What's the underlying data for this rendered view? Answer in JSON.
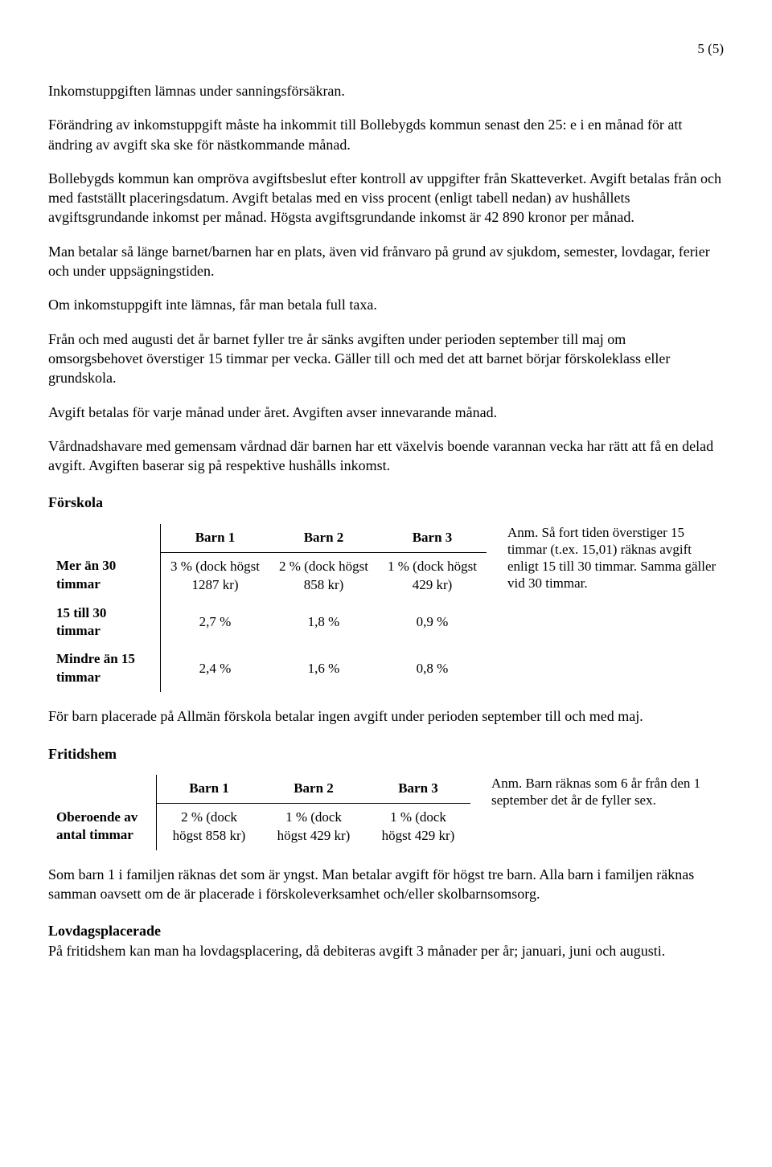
{
  "pageNumber": "5 (5)",
  "paragraphs": {
    "p1": "Inkomstuppgiften lämnas under sanningsförsäkran.",
    "p2": "Förändring av inkomstuppgift måste ha inkommit till Bollebygds kommun senast den 25: e i en månad för att ändring av avgift ska ske för nästkommande månad.",
    "p3": "Bollebygds kommun kan ompröva avgiftsbeslut efter kontroll av uppgifter från Skatteverket. Avgift betalas från och med fastställt placeringsdatum. Avgift betalas med en viss procent (enligt tabell nedan) av hushållets avgiftsgrundande inkomst per månad. Högsta avgiftsgrundande inkomst är 42 890 kronor per månad.",
    "p4": "Man betalar så länge barnet/barnen har en plats, även vid frånvaro på grund av sjukdom, semester, lovdagar, ferier och under uppsägningstiden.",
    "p5": "Om inkomstuppgift inte lämnas, får man betala full taxa.",
    "p6": "Från och med augusti det år barnet fyller tre år sänks avgiften under perioden september till maj om omsorgsbehovet överstiger 15 timmar per vecka. Gäller till och med det att barnet börjar förskoleklass eller grundskola.",
    "p7": "Avgift betalas för varje månad under året. Avgiften avser innevarande månad.",
    "p8": "Vårdnadshavare med gemensam vårdnad där barnen har ett växelvis boende varannan vecka har rätt att få en delad avgift. Avgiften baserar sig på respektive hushålls inkomst.",
    "p9": "För barn placerade på Allmän förskola betalar ingen avgift under perioden september till och med maj.",
    "p10": "Som barn 1 i familjen räknas det som är yngst. Man betalar avgift för högst tre barn. Alla barn i familjen räknas samman oavsett om de är placerade i förskoleverksamhet och/eller skolbarnsomsorg.",
    "p11": "På fritidshem kan man ha lovdagsplacering, då debiteras avgift 3 månader per år; januari, juni och augusti."
  },
  "headings": {
    "forskola": "Förskola",
    "fritidshem": "Fritidshem",
    "lovdags": "Lovdagsplacerade"
  },
  "forskolaTable": {
    "headers": {
      "empty": "",
      "b1": "Barn 1",
      "b2": "Barn 2",
      "b3": "Barn 3"
    },
    "rows": {
      "r1": {
        "label": "Mer än 30 timmar",
        "c1": "3 % (dock högst 1287 kr)",
        "c2": "2 % (dock högst 858 kr)",
        "c3": "1 % (dock högst 429 kr)"
      },
      "r2": {
        "label": "15 till 30 timmar",
        "c1": "2,7 %",
        "c2": "1,8 %",
        "c3": "0,9 %"
      },
      "r3": {
        "label": "Mindre än 15 timmar",
        "c1": "2,4 %",
        "c2": "1,6 %",
        "c3": "0,8 %"
      }
    },
    "note": "Anm. Så fort tiden överstiger 15 timmar (t.ex. 15,01) räknas avgift enligt 15 till 30 timmar. Samma gäller vid 30 timmar."
  },
  "fritidsTable": {
    "headers": {
      "empty": "",
      "b1": "Barn 1",
      "b2": "Barn 2",
      "b3": "Barn 3"
    },
    "rows": {
      "r1": {
        "label": "Oberoende av antal timmar",
        "c1": "2 % (dock högst 858 kr)",
        "c2": "1 % (dock högst 429 kr)",
        "c3": "1 % (dock högst 429 kr)"
      }
    },
    "note": "Anm. Barn räknas som 6 år från den 1 september det år de fyller sex."
  }
}
